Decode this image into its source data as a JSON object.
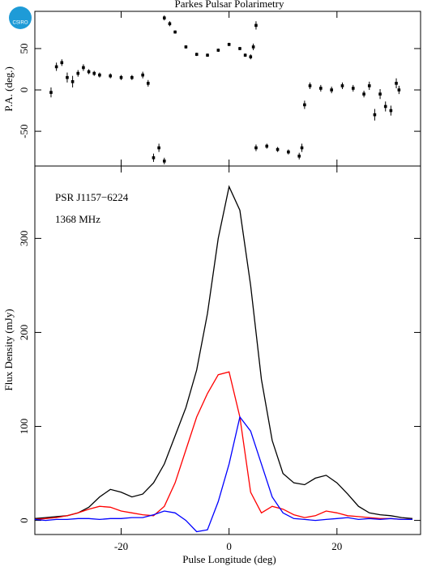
{
  "logo": "CSIRO",
  "chart_data": [
    {
      "type": "scatter",
      "title": "Parkes Pulsar Polarimetry",
      "ylabel": "P.A. (deg.)",
      "xlim": [
        -36,
        35.5
      ],
      "xticks": [
        -20,
        0,
        20
      ],
      "ylim": [
        -92,
        95
      ],
      "yticks": [
        -50,
        0,
        50
      ],
      "color": "#000000",
      "grid": false,
      "x": [
        -33,
        -32,
        -31,
        -30,
        -29,
        -28,
        -27,
        -26,
        -25,
        -24,
        -22,
        -20,
        -18,
        -16,
        -15,
        -14,
        -13,
        -12,
        -12,
        -11,
        -10,
        -8,
        -6,
        -4,
        -2,
        0,
        2,
        3,
        4,
        4.5,
        5,
        5,
        7,
        9,
        11,
        13,
        13.5,
        14,
        15,
        17,
        19,
        21,
        23,
        25,
        26,
        27,
        28,
        29,
        30,
        31,
        31.5
      ],
      "values": [
        -3,
        28,
        33,
        15,
        10,
        20,
        27,
        22,
        20,
        18,
        17,
        15,
        15,
        18,
        8,
        -82,
        -70,
        -86,
        87,
        80,
        70,
        52,
        43,
        42,
        48,
        55,
        50,
        42,
        40,
        52,
        78,
        -70,
        -68,
        -72,
        -75,
        -80,
        -70,
        -18,
        5,
        2,
        0,
        5,
        2,
        -5,
        5,
        -30,
        -5,
        -20,
        -25,
        8,
        0
      ],
      "errors": [
        6,
        5,
        4,
        6,
        7,
        4,
        4,
        3,
        3,
        3,
        3,
        3,
        3,
        4,
        4,
        5,
        5,
        4,
        3,
        3,
        2,
        2,
        2,
        2,
        2,
        2,
        2,
        2,
        3,
        4,
        5,
        4,
        3,
        3,
        3,
        4,
        5,
        5,
        4,
        4,
        4,
        4,
        4,
        4,
        5,
        7,
        6,
        6,
        6,
        6,
        5
      ]
    },
    {
      "type": "line",
      "xlabel": "Pulse Longitude (deg)",
      "ylabel": "Flux Density (mJy)",
      "annotations": [
        "PSR J1157−6224",
        "1368 MHz"
      ],
      "xlim": [
        -36,
        35.5
      ],
      "xticks": [
        -20,
        0,
        20
      ],
      "ylim": [
        -15,
        377
      ],
      "yticks": [
        0,
        100,
        200,
        300
      ],
      "grid": false,
      "x": [
        -36,
        -34,
        -32,
        -30,
        -28,
        -26,
        -24,
        -22,
        -20,
        -18,
        -16,
        -14,
        -12,
        -10,
        -8,
        -6,
        -4,
        -2,
        0,
        2,
        4,
        6,
        8,
        10,
        12,
        14,
        16,
        18,
        20,
        22,
        24,
        26,
        28,
        30,
        32,
        34
      ],
      "series": [
        {
          "color": "#000000",
          "values": [
            2,
            3,
            4,
            5,
            8,
            14,
            25,
            33,
            30,
            25,
            28,
            40,
            60,
            90,
            120,
            160,
            220,
            300,
            355,
            330,
            250,
            150,
            85,
            50,
            40,
            38,
            45,
            48,
            40,
            28,
            15,
            8,
            6,
            5,
            3,
            2
          ]
        },
        {
          "color": "#ff0000",
          "values": [
            1,
            2,
            3,
            5,
            8,
            12,
            15,
            14,
            10,
            8,
            6,
            5,
            15,
            40,
            75,
            110,
            135,
            155,
            158,
            110,
            30,
            8,
            15,
            12,
            6,
            3,
            5,
            10,
            8,
            5,
            4,
            3,
            2,
            2,
            1,
            1
          ]
        },
        {
          "color": "#0000ff",
          "values": [
            1,
            0,
            1,
            1,
            2,
            2,
            1,
            2,
            2,
            3,
            3,
            6,
            10,
            8,
            0,
            -12,
            -10,
            20,
            60,
            110,
            95,
            60,
            25,
            8,
            2,
            1,
            0,
            1,
            2,
            3,
            1,
            2,
            1,
            2,
            1,
            1
          ]
        }
      ]
    }
  ]
}
